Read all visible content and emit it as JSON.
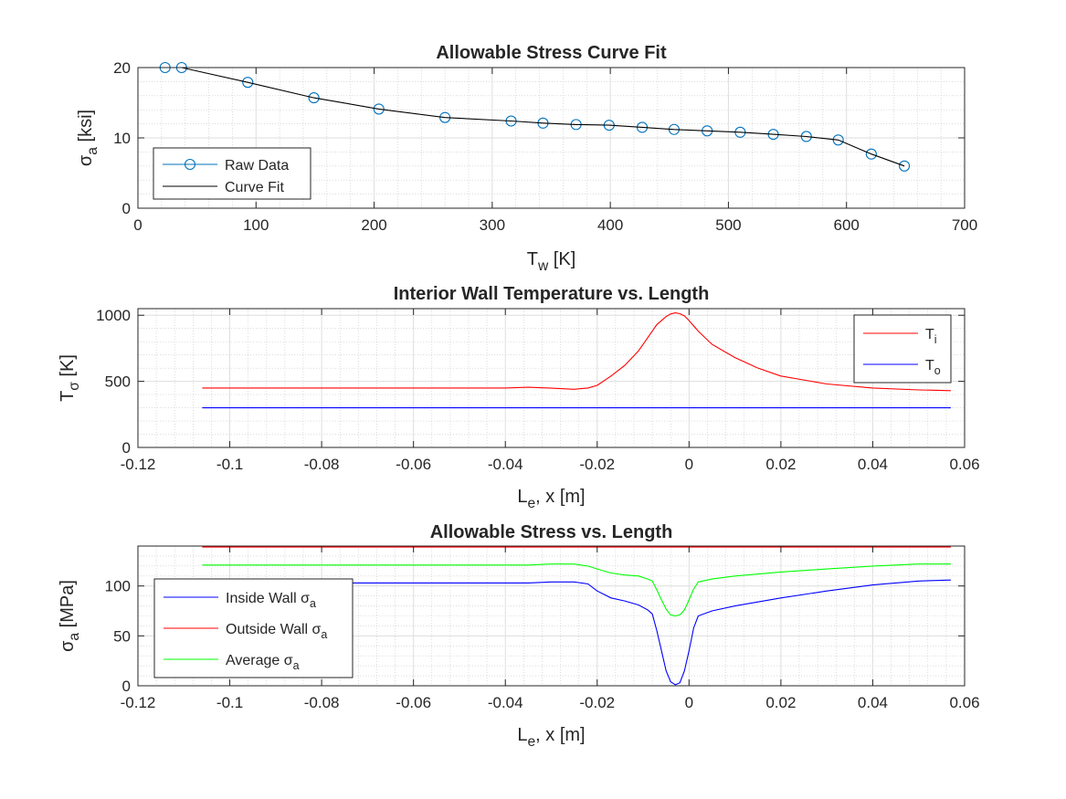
{
  "chart_data": [
    {
      "type": "line",
      "title": "Allowable Stress Curve Fit",
      "xlabel": {
        "base": "T",
        "sub": "w",
        "rest": " [K]"
      },
      "ylabel": {
        "base": "σ",
        "sub": "a",
        "rest": " [ksi]"
      },
      "xlim": [
        0,
        700
      ],
      "ylim": [
        0,
        20
      ],
      "xticks": [
        0,
        100,
        200,
        300,
        400,
        500,
        600,
        700
      ],
      "xtick_labels": [
        "0",
        "100",
        "200",
        "300",
        "400",
        "500",
        "600",
        "700"
      ],
      "yticks": [
        0,
        10,
        20
      ],
      "ytick_labels": [
        "0",
        "10",
        "20"
      ],
      "grid": true,
      "minor_grid": true,
      "legend_position": "bottom-left",
      "series": [
        {
          "name": "Raw Data",
          "color": "#0072bd",
          "marker": "circle",
          "line": false,
          "x": [
            23,
            37,
            93,
            149,
            204,
            260,
            316,
            343,
            371,
            399,
            427,
            454,
            482,
            510,
            538,
            566,
            593,
            621,
            649
          ],
          "y": [
            20.0,
            20.0,
            17.9,
            15.7,
            14.1,
            12.9,
            12.4,
            12.1,
            11.9,
            11.8,
            11.5,
            11.2,
            11.0,
            10.8,
            10.5,
            10.2,
            9.7,
            7.7,
            6.0
          ]
        },
        {
          "name": "Curve Fit",
          "color": "#000000",
          "marker": "none",
          "line": true,
          "x": [
            23,
            37,
            93,
            149,
            204,
            260,
            316,
            343,
            371,
            399,
            427,
            454,
            482,
            510,
            538,
            566,
            593,
            621,
            649
          ],
          "y": [
            20.0,
            20.0,
            17.9,
            15.7,
            14.1,
            12.9,
            12.4,
            12.1,
            11.9,
            11.8,
            11.5,
            11.2,
            11.0,
            10.8,
            10.5,
            10.2,
            9.7,
            7.7,
            6.0
          ]
        }
      ]
    },
    {
      "type": "line",
      "title": "Interior Wall Temperature vs. Length",
      "xlabel": {
        "base": "L",
        "sub": "e",
        "rest": ", x [m]"
      },
      "ylabel": {
        "base": "T",
        "sub": "σ",
        "rest": " [K]"
      },
      "xlim": [
        -0.12,
        0.06
      ],
      "ylim": [
        0,
        1050
      ],
      "xticks": [
        -0.12,
        -0.1,
        -0.08,
        -0.06,
        -0.04,
        -0.02,
        0,
        0.02,
        0.04,
        0.06
      ],
      "xtick_labels": [
        "-0.12",
        "-0.1",
        "-0.08",
        "-0.06",
        "-0.04",
        "-0.02",
        "0",
        "0.02",
        "0.04",
        "0.06"
      ],
      "yticks": [
        0,
        500,
        1000
      ],
      "ytick_labels": [
        "0",
        "500",
        "1000"
      ],
      "grid": true,
      "minor_grid": true,
      "legend_position": "top-right",
      "series": [
        {
          "name": "T_i",
          "legend_base": "T",
          "legend_sub": "i",
          "color": "#ff0000",
          "x": [
            -0.106,
            -0.09,
            -0.07,
            -0.05,
            -0.04,
            -0.035,
            -0.03,
            -0.025,
            -0.022,
            -0.02,
            -0.017,
            -0.014,
            -0.011,
            -0.009,
            -0.007,
            -0.005,
            -0.004,
            -0.003,
            -0.002,
            -0.001,
            0.0,
            0.002,
            0.005,
            0.01,
            0.015,
            0.02,
            0.03,
            0.04,
            0.05,
            0.057
          ],
          "y": [
            450,
            450,
            450,
            450,
            450,
            455,
            448,
            440,
            450,
            470,
            540,
            620,
            730,
            830,
            930,
            990,
            1010,
            1018,
            1012,
            995,
            960,
            880,
            780,
            680,
            600,
            540,
            480,
            450,
            435,
            430
          ]
        },
        {
          "name": "T_o",
          "legend_base": "T",
          "legend_sub": "o",
          "color": "#0000ff",
          "x": [
            -0.106,
            0.057
          ],
          "y": [
            300,
            300
          ]
        }
      ]
    },
    {
      "type": "line",
      "title": "Allowable Stress vs. Length",
      "xlabel": {
        "base": "L",
        "sub": "e",
        "rest": ", x [m]"
      },
      "ylabel": {
        "base": "σ",
        "sub": "a",
        "rest": " [MPa]"
      },
      "xlim": [
        -0.12,
        0.06
      ],
      "ylim": [
        0,
        140
      ],
      "xticks": [
        -0.12,
        -0.1,
        -0.08,
        -0.06,
        -0.04,
        -0.02,
        0,
        0.02,
        0.04,
        0.06
      ],
      "xtick_labels": [
        "-0.12",
        "-0.1",
        "-0.08",
        "-0.06",
        "-0.04",
        "-0.02",
        "0",
        "0.02",
        "0.04",
        "0.06"
      ],
      "yticks": [
        0,
        50,
        100
      ],
      "ytick_labels": [
        "0",
        "50",
        "100"
      ],
      "grid": true,
      "minor_grid": true,
      "legend_position": "bottom-left",
      "series": [
        {
          "name": "Inside Wall σa",
          "legend_text": "Inside Wall ",
          "legend_base": "σ",
          "legend_sub": "a",
          "color": "#0000ff",
          "x": [
            -0.106,
            -0.09,
            -0.07,
            -0.05,
            -0.035,
            -0.03,
            -0.025,
            -0.022,
            -0.02,
            -0.017,
            -0.014,
            -0.011,
            -0.009,
            -0.008,
            -0.007,
            -0.006,
            -0.005,
            -0.004,
            -0.003,
            -0.002,
            -0.001,
            0.0,
            0.001,
            0.002,
            0.005,
            0.01,
            0.02,
            0.03,
            0.04,
            0.05,
            0.057
          ],
          "y": [
            103,
            103,
            103,
            103,
            103,
            104,
            104,
            102,
            95,
            88,
            85,
            81,
            76,
            72,
            55,
            35,
            15,
            4,
            1,
            3,
            15,
            35,
            58,
            70,
            75,
            80,
            88,
            95,
            101,
            105,
            106
          ]
        },
        {
          "name": "Outside Wall σa",
          "legend_text": "Outside Wall ",
          "legend_base": "σ",
          "legend_sub": "a",
          "color": "#ff0000",
          "x": [
            -0.106,
            0.057
          ],
          "y": [
            139,
            139
          ]
        },
        {
          "name": "Average σa",
          "legend_text": "Average ",
          "legend_base": "σ",
          "legend_sub": "a",
          "color": "#00ff00",
          "x": [
            -0.106,
            -0.09,
            -0.07,
            -0.05,
            -0.035,
            -0.03,
            -0.025,
            -0.022,
            -0.02,
            -0.017,
            -0.014,
            -0.011,
            -0.009,
            -0.008,
            -0.007,
            -0.006,
            -0.005,
            -0.004,
            -0.003,
            -0.002,
            -0.001,
            0.0,
            0.001,
            0.002,
            0.005,
            0.01,
            0.02,
            0.03,
            0.04,
            0.05,
            0.057
          ],
          "y": [
            121,
            121,
            121,
            121,
            121,
            122,
            122,
            120,
            117,
            113,
            111,
            110,
            107,
            105,
            96,
            86,
            77,
            71,
            70,
            71,
            76,
            86,
            97,
            104,
            107,
            110,
            114,
            117,
            120,
            122,
            122
          ]
        }
      ]
    }
  ]
}
